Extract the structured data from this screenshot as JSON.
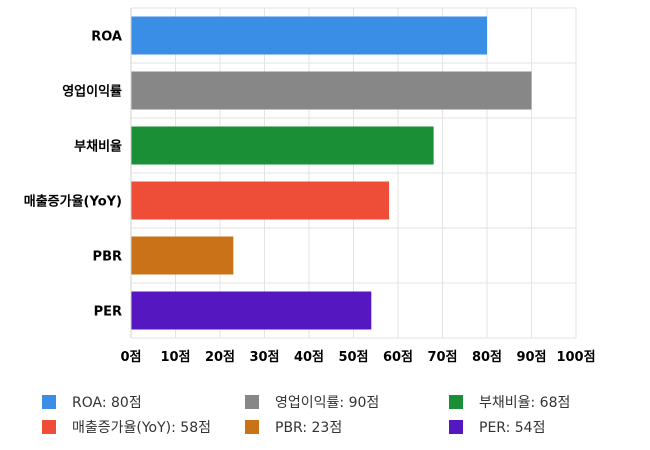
{
  "chart_data": {
    "type": "bar",
    "orientation": "horizontal",
    "categories": [
      "ROA",
      "영업이익률",
      "부채비율",
      "매출증가율(YoY)",
      "PBR",
      "PER"
    ],
    "values": [
      80,
      90,
      68,
      58,
      23,
      54
    ],
    "colors": [
      "#3a8ee6",
      "#878787",
      "#1a8f35",
      "#ee4e38",
      "#c97218",
      "#5417c0"
    ],
    "xlim": [
      0,
      100
    ],
    "xticks": [
      "0점",
      "10점",
      "20점",
      "30점",
      "40점",
      "50점",
      "60점",
      "70점",
      "80점",
      "90점",
      "100점"
    ],
    "grid": true,
    "legend_position": "bottom"
  },
  "legend": [
    {
      "label": "ROA: 80점",
      "color": "#3a8ee6"
    },
    {
      "label": "영업이익률: 90점",
      "color": "#878787"
    },
    {
      "label": "부채비율: 68점",
      "color": "#1a8f35"
    },
    {
      "label": "매출증가율(YoY): 58점",
      "color": "#ee4e38"
    },
    {
      "label": "PBR: 23점",
      "color": "#c97218"
    },
    {
      "label": "PER: 54점",
      "color": "#5417c0"
    }
  ]
}
